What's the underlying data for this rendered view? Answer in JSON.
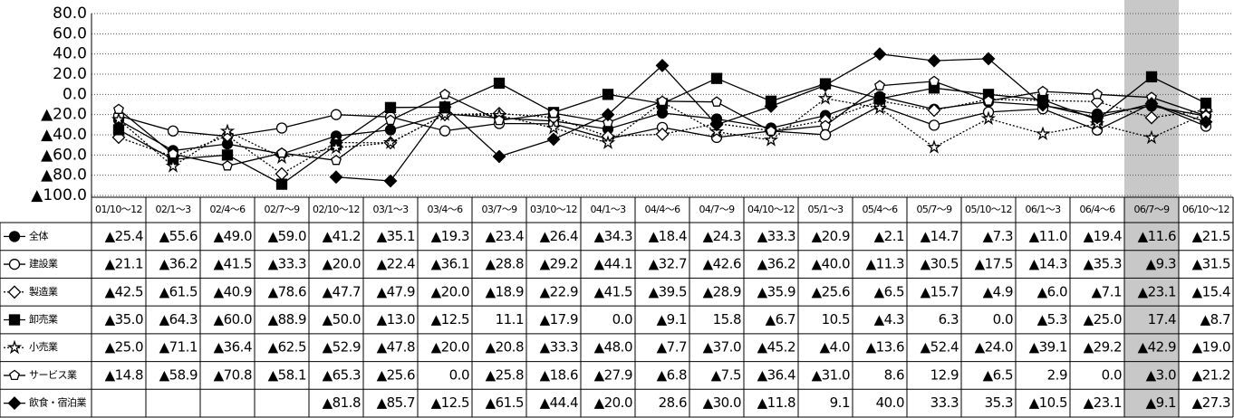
{
  "chart_data": {
    "type": "line",
    "categories": [
      "01/10～12",
      "02/1～3",
      "02/4～6",
      "02/7～9",
      "02/10～12",
      "03/1～3",
      "03/4～6",
      "03/7～9",
      "03/10～12",
      "04/1～3",
      "04/4～6",
      "04/7～9",
      "04/10～12",
      "05/1～3",
      "05/4～6",
      "05/7～9",
      "05/10～12",
      "06/1～3",
      "06/4～6",
      "06/7～9",
      "06/10～12"
    ],
    "highlight": "06/7～9",
    "ylim": [
      -100,
      80
    ],
    "yticks": [
      {
        "value": 80,
        "label": "80.0"
      },
      {
        "value": 60,
        "label": "60.0"
      },
      {
        "value": 40,
        "label": "40.0"
      },
      {
        "value": 20,
        "label": "20.0"
      },
      {
        "value": 0,
        "label": "0.0"
      },
      {
        "value": -20,
        "label": "▲20.0"
      },
      {
        "value": -40,
        "label": "▲40.0"
      },
      {
        "value": -60,
        "label": "▲60.0"
      },
      {
        "value": -80,
        "label": "▲80.0"
      },
      {
        "value": -100,
        "label": "▲100.0"
      }
    ],
    "grid": true,
    "series": [
      {
        "name": "全体",
        "color": "#000000",
        "marker": "circle",
        "filled": true,
        "dashed": false,
        "values": [
          -25.4,
          -55.6,
          -49.0,
          -59.0,
          -41.2,
          -35.1,
          -19.3,
          -23.4,
          -26.4,
          -34.3,
          -18.4,
          -24.3,
          -33.3,
          -20.9,
          -2.1,
          -14.7,
          -7.3,
          -11.0,
          -19.4,
          -11.6,
          -21.5
        ],
        "value_labels": [
          "▲25.4",
          "▲55.6",
          "▲49.0",
          "▲59.0",
          "▲41.2",
          "▲35.1",
          "▲19.3",
          "▲23.4",
          "▲26.4",
          "▲34.3",
          "▲18.4",
          "▲24.3",
          "▲33.3",
          "▲20.9",
          "▲2.1",
          "▲14.7",
          "▲7.3",
          "▲11.0",
          "▲19.4",
          "▲11.6",
          "▲21.5"
        ]
      },
      {
        "name": "建設業",
        "color": "#000000",
        "marker": "circle",
        "filled": false,
        "dashed": false,
        "values": [
          -21.1,
          -36.2,
          -41.5,
          -33.3,
          -20.0,
          -22.4,
          -36.1,
          -28.8,
          -29.2,
          -44.1,
          -32.7,
          -42.6,
          -36.2,
          -40.0,
          -11.3,
          -30.5,
          -17.5,
          -14.3,
          -35.3,
          -9.3,
          -31.5
        ],
        "value_labels": [
          "▲21.1",
          "▲36.2",
          "▲41.5",
          "▲33.3",
          "▲20.0",
          "▲22.4",
          "▲36.1",
          "▲28.8",
          "▲29.2",
          "▲44.1",
          "▲32.7",
          "▲42.6",
          "▲36.2",
          "▲40.0",
          "▲11.3",
          "▲30.5",
          "▲17.5",
          "▲14.3",
          "▲35.3",
          "▲9.3",
          "▲31.5"
        ]
      },
      {
        "name": "製造業",
        "color": "#000000",
        "marker": "diamond",
        "filled": false,
        "dashed": true,
        "values": [
          -42.5,
          -61.5,
          -40.9,
          -78.6,
          -47.7,
          -47.9,
          -20.0,
          -18.9,
          -22.9,
          -41.5,
          -39.5,
          -28.9,
          -35.9,
          -25.6,
          -6.5,
          -15.7,
          -4.9,
          -6.0,
          -7.1,
          -23.1,
          -15.4
        ],
        "value_labels": [
          "▲42.5",
          "▲61.5",
          "▲40.9",
          "▲78.6",
          "▲47.7",
          "▲47.9",
          "▲20.0",
          "▲18.9",
          "▲22.9",
          "▲41.5",
          "▲39.5",
          "▲28.9",
          "▲35.9",
          "▲25.6",
          "▲6.5",
          "▲15.7",
          "▲4.9",
          "▲6.0",
          "▲7.1",
          "▲23.1",
          "▲15.4"
        ]
      },
      {
        "name": "卸売業",
        "color": "#000000",
        "marker": "square",
        "filled": true,
        "dashed": false,
        "values": [
          -35.0,
          -64.3,
          -60.0,
          -88.9,
          -50.0,
          -13.0,
          -12.5,
          11.1,
          -17.9,
          0.0,
          -9.1,
          15.8,
          -6.7,
          10.5,
          -4.3,
          6.3,
          0.0,
          -5.3,
          -25.0,
          17.4,
          -8.7
        ],
        "value_labels": [
          "▲35.0",
          "▲64.3",
          "▲60.0",
          "▲88.9",
          "▲50.0",
          "▲13.0",
          "▲12.5",
          "11.1",
          "▲17.9",
          "0.0",
          "▲9.1",
          "15.8",
          "▲6.7",
          "10.5",
          "▲4.3",
          "6.3",
          "0.0",
          "▲5.3",
          "▲25.0",
          "17.4",
          "▲8.7"
        ]
      },
      {
        "name": "小売業",
        "color": "#000000",
        "marker": "star",
        "filled": false,
        "dashed": true,
        "values": [
          -25.0,
          -71.1,
          -36.4,
          -62.5,
          -52.9,
          -47.8,
          -20.0,
          -20.8,
          -33.3,
          -48.0,
          -7.7,
          -37.0,
          -45.2,
          -4.0,
          -13.6,
          -52.4,
          -24.0,
          -39.1,
          -29.2,
          -42.9,
          -19.0
        ],
        "value_labels": [
          "▲25.0",
          "▲71.1",
          "▲36.4",
          "▲62.5",
          "▲52.9",
          "▲47.8",
          "▲20.0",
          "▲20.8",
          "▲33.3",
          "▲48.0",
          "▲7.7",
          "▲37.0",
          "▲45.2",
          "▲4.0",
          "▲13.6",
          "▲52.4",
          "▲24.0",
          "▲39.1",
          "▲29.2",
          "▲42.9",
          "▲19.0"
        ]
      },
      {
        "name": "サービス業",
        "color": "#000000",
        "marker": "pentagon",
        "filled": false,
        "dashed": false,
        "values": [
          -14.8,
          -58.9,
          -70.8,
          -58.1,
          -65.3,
          -25.6,
          0.0,
          -25.8,
          -18.6,
          -27.9,
          -6.8,
          -7.5,
          -36.4,
          -31.0,
          8.6,
          12.9,
          -6.5,
          2.9,
          0.0,
          -3.0,
          -21.2
        ],
        "value_labels": [
          "▲14.8",
          "▲58.9",
          "▲70.8",
          "▲58.1",
          "▲65.3",
          "▲25.6",
          "0.0",
          "▲25.8",
          "▲18.6",
          "▲27.9",
          "▲6.8",
          "▲7.5",
          "▲36.4",
          "▲31.0",
          "8.6",
          "12.9",
          "▲6.5",
          "2.9",
          "0.0",
          "▲3.0",
          "▲21.2"
        ]
      },
      {
        "name": "飲食・宿泊業",
        "color": "#000000",
        "marker": "diamond",
        "filled": true,
        "dashed": false,
        "values": [
          null,
          null,
          null,
          null,
          -81.8,
          -85.7,
          -12.5,
          -61.5,
          -44.4,
          -20.0,
          28.6,
          -30.0,
          -11.8,
          9.1,
          40.0,
          33.3,
          35.3,
          -10.5,
          -23.1,
          -9.1,
          -27.3
        ],
        "value_labels": [
          null,
          null,
          null,
          null,
          "▲81.8",
          "▲85.7",
          "▲12.5",
          "▲61.5",
          "▲44.4",
          "▲20.0",
          "28.6",
          "▲30.0",
          "▲11.8",
          "9.1",
          "40.0",
          "33.3",
          "35.3",
          "▲10.5",
          "▲23.1",
          "▲9.1",
          "▲27.3"
        ]
      }
    ]
  }
}
